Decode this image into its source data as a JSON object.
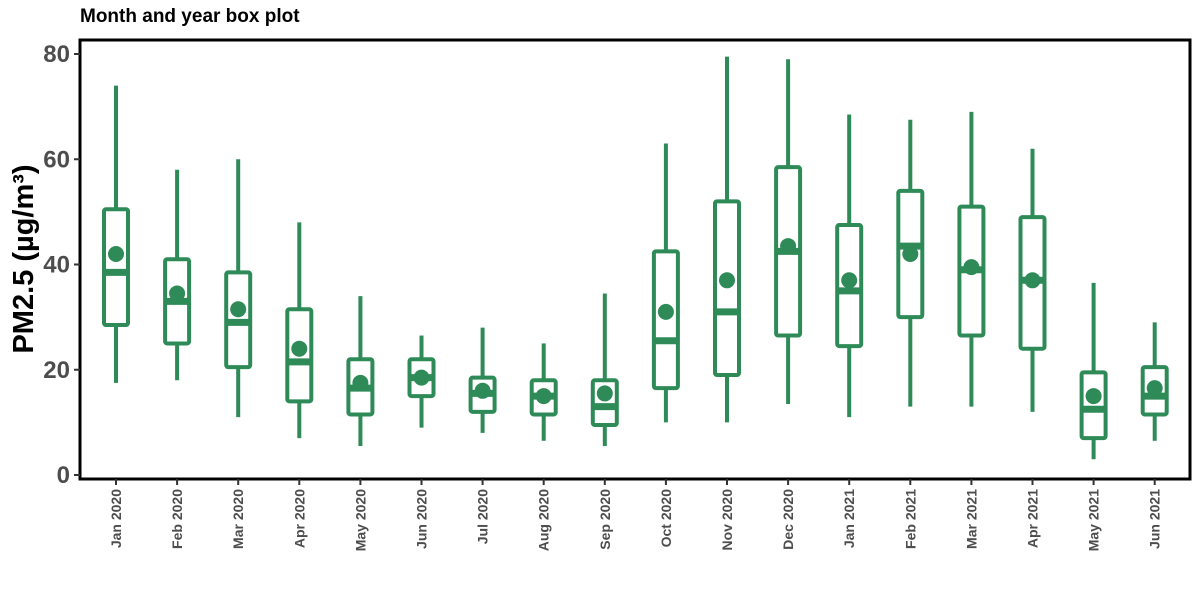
{
  "chart_data": {
    "type": "box",
    "title": "Month and year box plot",
    "ylabel": "PM2.5 (µg/m³)",
    "xlabel": "",
    "ylim": [
      0,
      82
    ],
    "yticks": [
      0,
      20,
      40,
      60,
      80
    ],
    "grid": false,
    "color": "#2e8b57",
    "categories": [
      "Jan 2020",
      "Feb 2020",
      "Mar 2020",
      "Apr 2020",
      "May 2020",
      "Jun 2020",
      "Jul 2020",
      "Aug 2020",
      "Sep 2020",
      "Oct 2020",
      "Nov 2020",
      "Dec 2020",
      "Jan 2021",
      "Feb 2021",
      "Mar 2021",
      "Apr 2021",
      "May 2021",
      "Jun 2021"
    ],
    "boxes": [
      {
        "min": 17.5,
        "q1": 28.5,
        "median": 38.5,
        "q3": 50.5,
        "max": 74.0,
        "mean": 42.0
      },
      {
        "min": 18.0,
        "q1": 25.0,
        "median": 33.0,
        "q3": 41.0,
        "max": 58.0,
        "mean": 34.5
      },
      {
        "min": 11.0,
        "q1": 20.5,
        "median": 29.0,
        "q3": 38.5,
        "max": 60.0,
        "mean": 31.5
      },
      {
        "min": 7.0,
        "q1": 14.0,
        "median": 21.5,
        "q3": 31.5,
        "max": 48.0,
        "mean": 24.0
      },
      {
        "min": 5.5,
        "q1": 11.5,
        "median": 16.5,
        "q3": 22.0,
        "max": 34.0,
        "mean": 17.5
      },
      {
        "min": 9.0,
        "q1": 15.0,
        "median": 18.5,
        "q3": 22.0,
        "max": 26.5,
        "mean": 18.5
      },
      {
        "min": 8.0,
        "q1": 12.0,
        "median": 15.5,
        "q3": 18.5,
        "max": 28.0,
        "mean": 16.0
      },
      {
        "min": 6.5,
        "q1": 11.5,
        "median": 15.0,
        "q3": 18.0,
        "max": 25.0,
        "mean": 15.0
      },
      {
        "min": 5.5,
        "q1": 9.5,
        "median": 13.0,
        "q3": 18.0,
        "max": 34.5,
        "mean": 15.5
      },
      {
        "min": 10.0,
        "q1": 16.5,
        "median": 25.5,
        "q3": 42.5,
        "max": 63.0,
        "mean": 31.0
      },
      {
        "min": 10.0,
        "q1": 19.0,
        "median": 31.0,
        "q3": 52.0,
        "max": 79.5,
        "mean": 37.0
      },
      {
        "min": 13.5,
        "q1": 26.5,
        "median": 42.5,
        "q3": 58.5,
        "max": 79.0,
        "mean": 43.5
      },
      {
        "min": 11.0,
        "q1": 24.5,
        "median": 35.0,
        "q3": 47.5,
        "max": 68.5,
        "mean": 37.0
      },
      {
        "min": 13.0,
        "q1": 30.0,
        "median": 43.5,
        "q3": 54.0,
        "max": 67.5,
        "mean": 42.0
      },
      {
        "min": 13.0,
        "q1": 26.5,
        "median": 39.0,
        "q3": 51.0,
        "max": 69.0,
        "mean": 39.5
      },
      {
        "min": 12.0,
        "q1": 24.0,
        "median": 37.0,
        "q3": 49.0,
        "max": 62.0,
        "mean": 37.0
      },
      {
        "min": 3.0,
        "q1": 7.0,
        "median": 12.5,
        "q3": 19.5,
        "max": 36.5,
        "mean": 15.0
      },
      {
        "min": 6.5,
        "q1": 11.5,
        "median": 15.0,
        "q3": 20.5,
        "max": 29.0,
        "mean": 16.5
      }
    ]
  }
}
